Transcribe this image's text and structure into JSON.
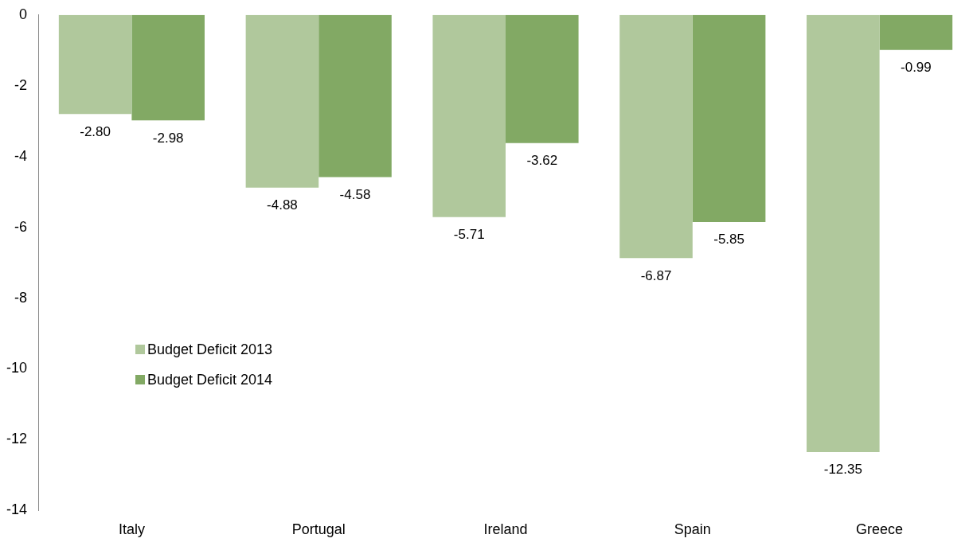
{
  "chart_data": {
    "type": "bar",
    "categories": [
      "Italy",
      "Portugal",
      "Ireland",
      "Spain",
      "Greece"
    ],
    "series": [
      {
        "name": "Budget Deficit 2013",
        "color": "#b0c89c",
        "values": [
          -2.8,
          -4.88,
          -5.71,
          -6.87,
          -12.35
        ],
        "value_labels": [
          "-2.80",
          "-4.88",
          "-5.71",
          "-6.87",
          "-12.35"
        ]
      },
      {
        "name": "Budget Deficit 2014",
        "color": "#82a964",
        "values": [
          -2.98,
          -4.58,
          -3.62,
          -5.85,
          -0.99
        ],
        "value_labels": [
          "-2.98",
          "-4.58",
          "-3.62",
          "-5.85",
          "-0.99"
        ]
      }
    ],
    "ylim": [
      -14,
      0
    ],
    "yticks": [
      -14,
      -12,
      -10,
      -8,
      -6,
      -4,
      -2,
      0
    ],
    "grid": false,
    "legend": "left"
  }
}
